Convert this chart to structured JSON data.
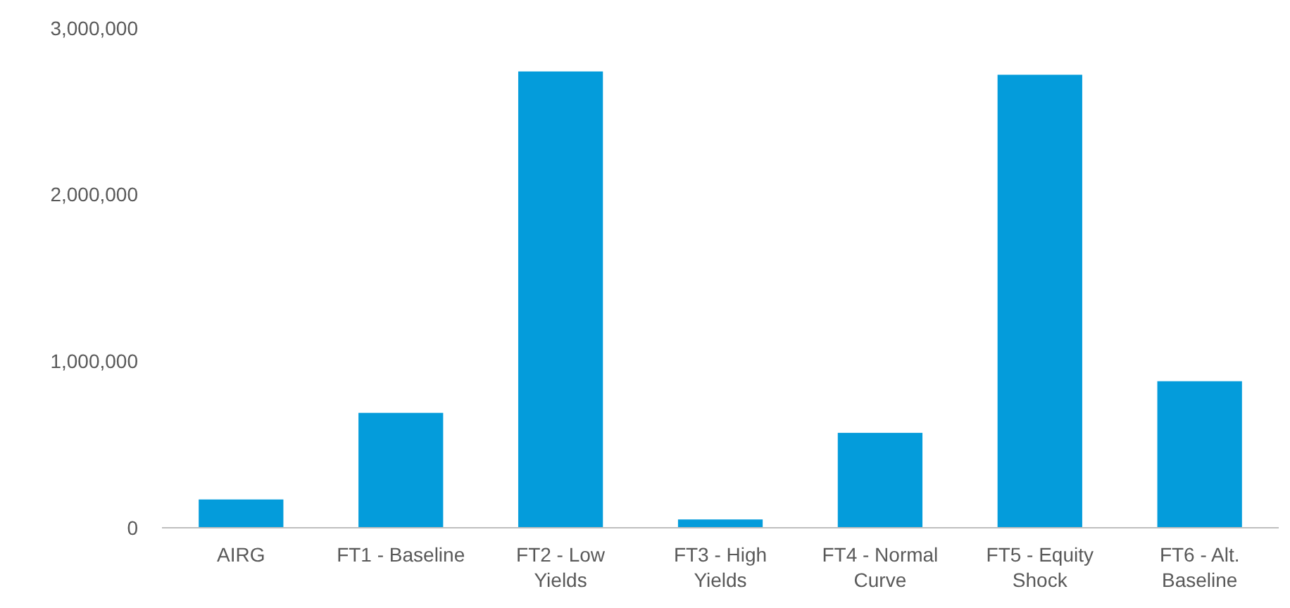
{
  "chart_data": {
    "type": "bar",
    "categories": [
      "AIRG",
      "FT1 - Baseline",
      "FT2 - Low Yields",
      "FT3 - High Yields",
      "FT4 - Normal Curve",
      "FT5 - Equity Shock",
      "FT6 - Alt. Baseline"
    ],
    "values": [
      170000,
      690000,
      2740000,
      50000,
      570000,
      2720000,
      880000
    ],
    "color": "#049cdb",
    "ylim": [
      0,
      3000000
    ],
    "yticks": [
      {
        "value": 0,
        "label": "0"
      },
      {
        "value": 1000000,
        "label": "1,000,000"
      },
      {
        "value": 2000000,
        "label": "2,000,000"
      },
      {
        "value": 3000000,
        "label": "3,000,000"
      }
    ],
    "grid": false
  }
}
